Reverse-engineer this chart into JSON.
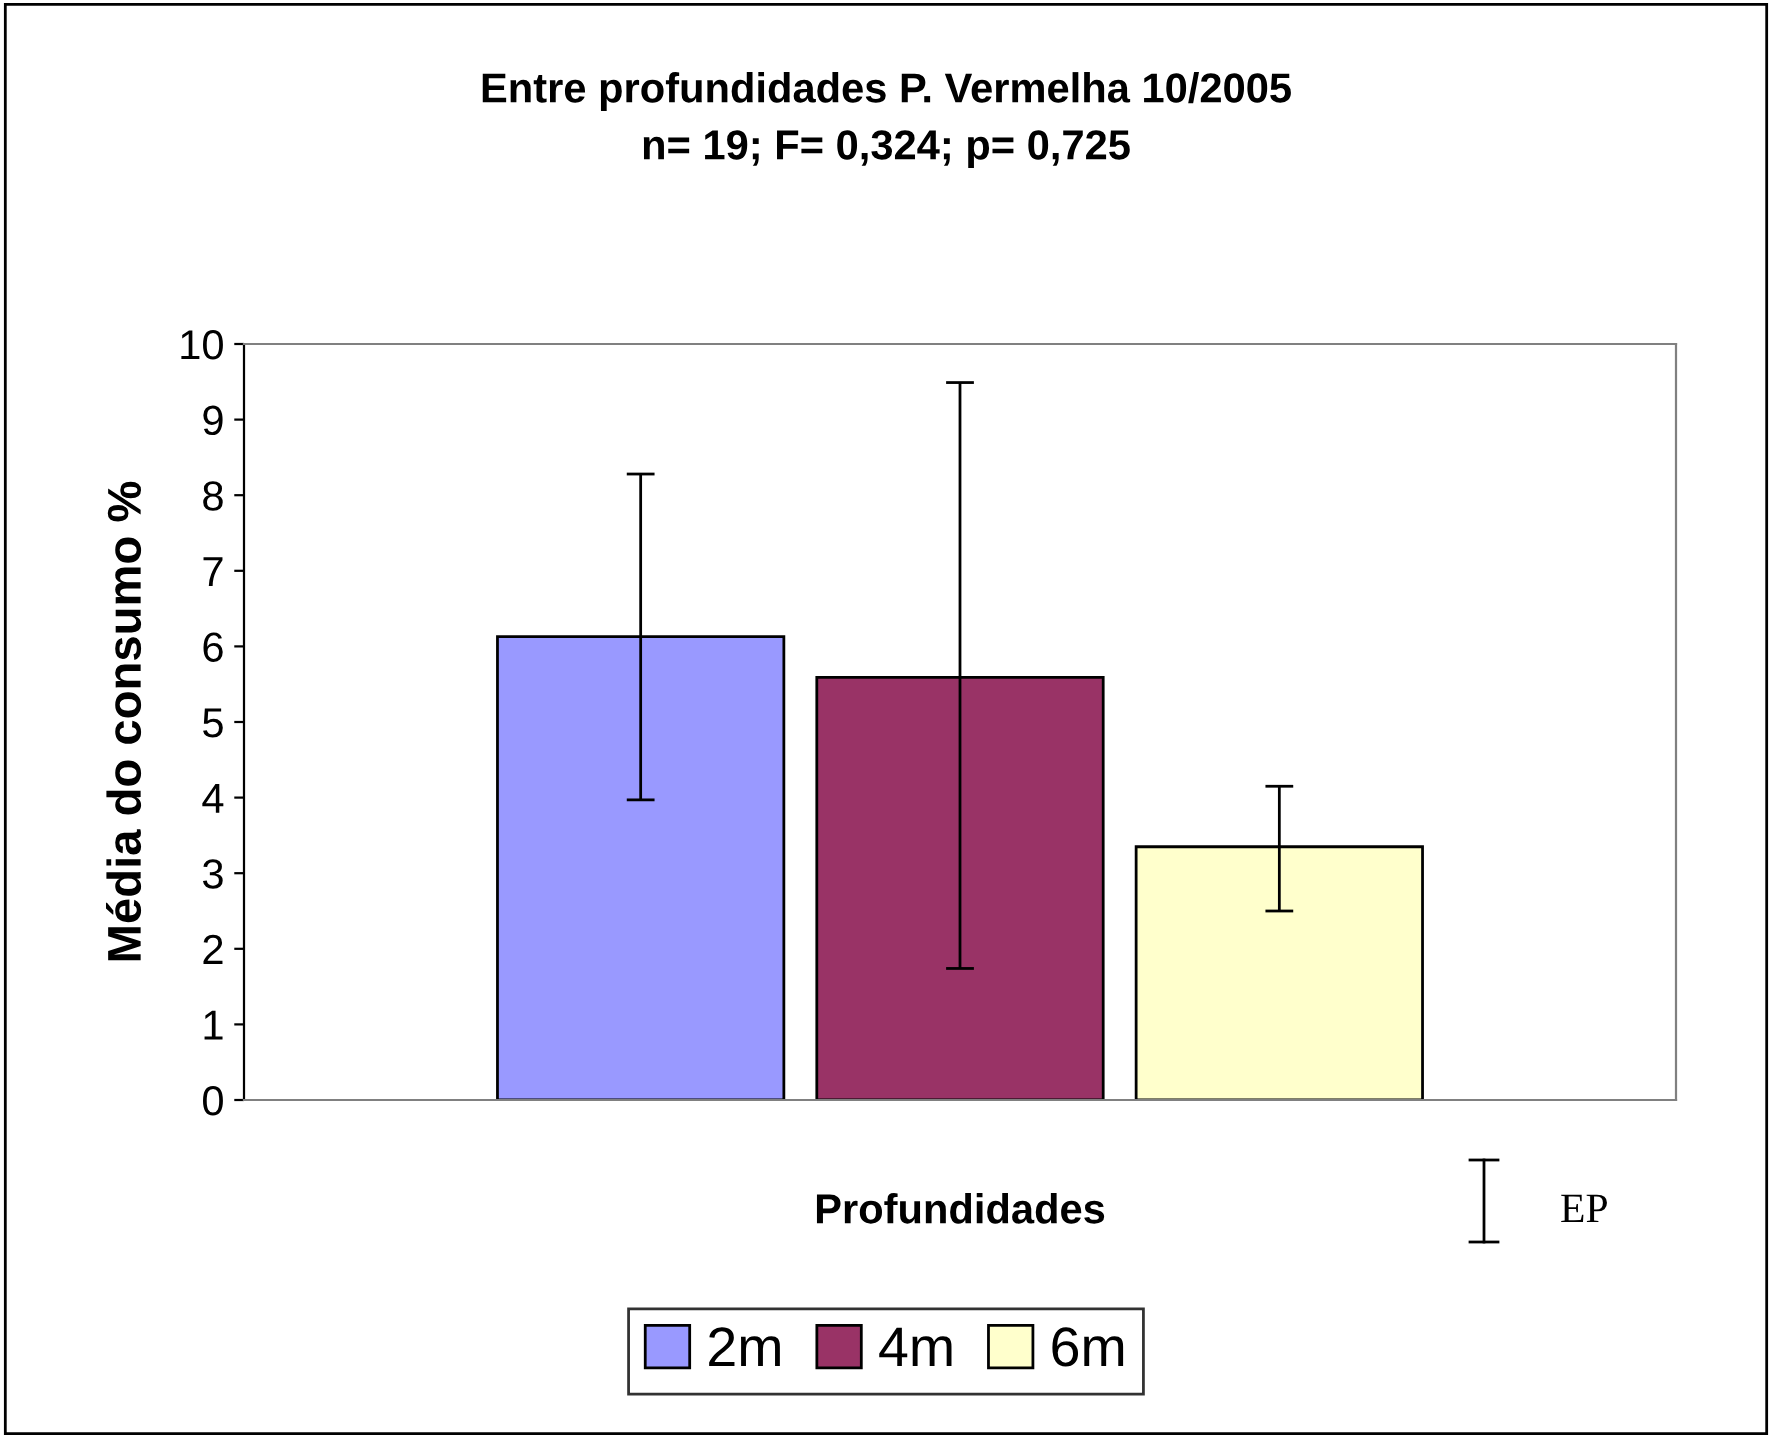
{
  "chart_data": {
    "type": "bar",
    "title": "Entre profundidades P. Vermelha 10/2005\nn= 19; F= 0,324; p= 0,725",
    "xlabel": "Profundidades",
    "ylabel": "Média do consumo %",
    "categories": [
      null
    ],
    "series": [
      {
        "name": "2m",
        "color": "#9999ff",
        "values": [
          6.13
        ],
        "errors": [
          [
            3.97,
            8.28
          ]
        ]
      },
      {
        "name": "4m",
        "color": "#993366",
        "values": [
          5.59
        ],
        "errors": [
          [
            1.74,
            9.49
          ]
        ]
      },
      {
        "name": "6m",
        "color": "#ffffcc",
        "values": [
          3.35
        ],
        "errors": [
          [
            2.5,
            4.15
          ]
        ]
      }
    ],
    "ylim": [
      0,
      10
    ],
    "yticks": [
      0,
      1,
      2,
      3,
      4,
      5,
      6,
      7,
      8,
      9,
      10
    ],
    "grid": false,
    "legend": "bottom",
    "annotations": [
      "EP"
    ]
  }
}
